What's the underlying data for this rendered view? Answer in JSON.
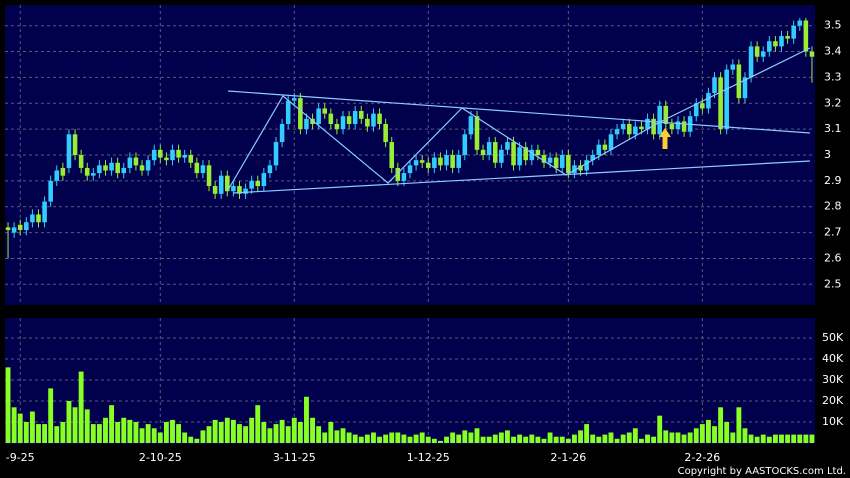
{
  "chart_data": {
    "type": "candlestick",
    "up_color": "#33ccff",
    "down_color": "#99ee33",
    "grid": true,
    "categories": [
      null,
      null,
      "-9-25",
      null,
      null,
      null,
      null,
      null,
      null,
      null,
      null,
      null,
      null,
      null,
      null,
      null,
      null,
      null,
      null,
      null,
      null,
      null,
      null,
      null,
      null,
      "2-10-25",
      null,
      null,
      null,
      null,
      null,
      null,
      null,
      null,
      null,
      null,
      null,
      null,
      null,
      null,
      null,
      null,
      null,
      null,
      null,
      null,
      null,
      "3-11-25",
      null,
      null,
      null,
      null,
      null,
      null,
      null,
      null,
      null,
      null,
      null,
      null,
      null,
      null,
      null,
      null,
      null,
      null,
      null,
      null,
      null,
      "1-12-25",
      null,
      null,
      null,
      null,
      null,
      null,
      null,
      null,
      null,
      null,
      null,
      null,
      null,
      null,
      null,
      null,
      null,
      null,
      null,
      null,
      null,
      null,
      "2-1-26",
      null,
      null,
      null,
      null,
      null,
      null,
      null,
      null,
      null,
      null,
      null,
      null,
      null,
      null,
      null,
      null,
      null,
      null,
      null,
      null,
      null,
      "2-2-26",
      null,
      null,
      null,
      null,
      null,
      null,
      null,
      null,
      null,
      null,
      null,
      null,
      null,
      null,
      null,
      null,
      null,
      null
    ],
    "open": [
      2.72,
      2.7,
      2.73,
      2.71,
      2.74,
      2.77,
      2.74,
      2.82,
      2.9,
      2.95,
      2.95,
      3.08,
      3.0,
      2.95,
      2.92,
      2.93,
      2.96,
      2.94,
      2.97,
      2.93,
      2.95,
      2.99,
      2.96,
      2.94,
      2.98,
      3.02,
      2.99,
      2.98,
      3.02,
      2.99,
      3.0,
      2.97,
      2.93,
      2.96,
      2.88,
      2.85,
      2.92,
      2.86,
      2.88,
      2.85,
      2.87,
      2.9,
      2.88,
      2.93,
      2.96,
      3.05,
      3.12,
      3.21,
      3.22,
      3.1,
      3.14,
      3.12,
      3.18,
      3.16,
      3.12,
      3.1,
      3.15,
      3.12,
      3.17,
      3.14,
      3.11,
      3.16,
      3.12,
      3.05,
      2.95,
      2.9,
      2.93,
      2.96,
      2.98,
      2.97,
      2.95,
      2.99,
      2.96,
      3.0,
      2.95,
      3.0,
      3.08,
      3.15,
      3.02,
      3.0,
      3.05,
      2.97,
      3.02,
      3.05,
      2.96,
      3.03,
      2.98,
      3.02,
      3.0,
      2.97,
      2.99,
      2.95,
      3.0,
      2.93,
      2.96,
      2.94,
      2.98,
      3.0,
      3.04,
      3.02,
      3.08,
      3.1,
      3.12,
      3.08,
      3.11,
      3.1,
      3.14,
      3.08,
      3.19,
      3.12,
      3.1,
      3.13,
      3.09,
      3.15,
      3.2,
      3.18,
      3.24,
      3.3,
      3.1,
      3.33,
      3.35,
      3.22,
      3.3,
      3.42,
      3.38,
      3.4,
      3.44,
      3.42,
      3.46,
      3.45,
      3.5,
      3.52,
      3.4
    ],
    "high": [
      2.74,
      2.74,
      2.75,
      2.76,
      2.79,
      2.79,
      2.84,
      2.92,
      2.96,
      2.97,
      3.1,
      3.1,
      3.02,
      2.97,
      2.95,
      2.98,
      2.98,
      2.99,
      2.99,
      2.97,
      3.01,
      3.01,
      2.98,
      3.0,
      3.04,
      3.04,
      3.01,
      3.04,
      3.04,
      3.02,
      3.02,
      2.99,
      2.98,
      2.98,
      2.9,
      2.94,
      2.94,
      2.9,
      2.9,
      2.89,
      2.92,
      2.92,
      2.95,
      2.98,
      3.07,
      3.14,
      3.23,
      3.24,
      3.24,
      3.16,
      3.16,
      3.2,
      3.2,
      3.18,
      3.14,
      3.17,
      3.17,
      3.19,
      3.19,
      3.16,
      3.18,
      3.18,
      3.14,
      3.07,
      2.97,
      2.95,
      2.98,
      3.0,
      3.0,
      2.99,
      3.01,
      3.01,
      3.02,
      3.02,
      3.02,
      3.1,
      3.17,
      3.17,
      3.04,
      3.07,
      3.07,
      3.04,
      3.07,
      3.07,
      3.05,
      3.05,
      3.04,
      3.04,
      3.02,
      3.01,
      3.01,
      3.02,
      3.02,
      2.98,
      2.98,
      3.0,
      3.02,
      3.06,
      3.06,
      3.1,
      3.12,
      3.14,
      3.14,
      3.13,
      3.13,
      3.16,
      3.16,
      3.21,
      3.21,
      3.14,
      3.15,
      3.15,
      3.17,
      3.22,
      3.22,
      3.26,
      3.32,
      3.32,
      3.35,
      3.37,
      3.37,
      3.32,
      3.44,
      3.44,
      3.42,
      3.46,
      3.46,
      3.48,
      3.48,
      3.52,
      3.53,
      3.53,
      3.42
    ],
    "low": [
      2.6,
      2.68,
      2.69,
      2.69,
      2.72,
      2.72,
      2.72,
      2.8,
      2.88,
      2.9,
      2.93,
      2.98,
      2.93,
      2.9,
      2.9,
      2.91,
      2.92,
      2.92,
      2.91,
      2.91,
      2.93,
      2.94,
      2.92,
      2.92,
      2.96,
      2.97,
      2.96,
      2.96,
      2.97,
      2.97,
      2.95,
      2.91,
      2.91,
      2.86,
      2.83,
      2.83,
      2.84,
      2.84,
      2.83,
      2.83,
      2.85,
      2.86,
      2.86,
      2.91,
      2.94,
      3.03,
      3.1,
      3.19,
      3.08,
      3.08,
      3.1,
      3.1,
      3.14,
      3.1,
      3.08,
      3.08,
      3.1,
      3.1,
      3.12,
      3.09,
      3.09,
      3.1,
      3.03,
      2.93,
      2.88,
      2.88,
      2.91,
      2.94,
      2.95,
      2.93,
      2.93,
      2.94,
      2.94,
      2.93,
      2.93,
      2.98,
      3.06,
      3.0,
      2.98,
      2.98,
      2.95,
      2.95,
      3.0,
      2.94,
      2.94,
      2.96,
      2.96,
      2.98,
      2.95,
      2.95,
      2.93,
      2.93,
      2.91,
      2.91,
      2.92,
      2.92,
      2.96,
      2.98,
      3.0,
      3.0,
      3.06,
      3.08,
      3.06,
      3.06,
      3.08,
      3.08,
      3.06,
      3.06,
      3.1,
      3.08,
      3.08,
      3.07,
      3.07,
      3.13,
      3.16,
      3.16,
      3.22,
      3.08,
      3.08,
      3.31,
      3.2,
      3.2,
      3.28,
      3.36,
      3.36,
      3.38,
      3.4,
      3.4,
      3.43,
      3.43,
      3.48,
      3.38,
      3.28
    ],
    "close": [
      2.71,
      2.72,
      2.71,
      2.74,
      2.77,
      2.74,
      2.82,
      2.9,
      2.94,
      2.92,
      3.08,
      3.0,
      2.95,
      2.92,
      2.93,
      2.96,
      2.94,
      2.97,
      2.93,
      2.95,
      2.99,
      2.96,
      2.94,
      2.98,
      3.02,
      2.99,
      2.98,
      3.02,
      2.99,
      3.0,
      2.97,
      2.93,
      2.96,
      2.88,
      2.85,
      2.92,
      2.86,
      2.88,
      2.85,
      2.87,
      2.9,
      2.88,
      2.93,
      2.96,
      3.05,
      3.12,
      3.21,
      3.22,
      3.1,
      3.14,
      3.12,
      3.18,
      3.16,
      3.12,
      3.1,
      3.15,
      3.12,
      3.17,
      3.14,
      3.11,
      3.16,
      3.12,
      3.05,
      2.95,
      2.9,
      2.93,
      2.96,
      2.98,
      2.97,
      2.95,
      2.99,
      2.96,
      3.0,
      2.95,
      3.0,
      3.08,
      3.15,
      3.02,
      3.0,
      3.05,
      2.97,
      3.02,
      3.05,
      2.96,
      3.03,
      2.98,
      3.02,
      3.0,
      2.97,
      2.99,
      2.95,
      3.0,
      2.93,
      2.96,
      2.94,
      2.98,
      3.0,
      3.04,
      3.02,
      3.08,
      3.1,
      3.12,
      3.08,
      3.11,
      3.1,
      3.14,
      3.08,
      3.19,
      3.12,
      3.1,
      3.13,
      3.09,
      3.15,
      3.2,
      3.18,
      3.24,
      3.3,
      3.1,
      3.33,
      3.35,
      3.22,
      3.3,
      3.42,
      3.38,
      3.4,
      3.44,
      3.42,
      3.46,
      3.45,
      3.5,
      3.52,
      3.4,
      3.38
    ],
    "ylim": [
      2.42,
      3.58
    ],
    "yticks": [
      2.5,
      2.6,
      2.7,
      2.8,
      2.9,
      3,
      3.1,
      3.2,
      3.3,
      3.4,
      3.5
    ],
    "volume": {
      "color": "#88ff22",
      "values": [
        36000,
        17000,
        14000,
        10000,
        15000,
        9000,
        9000,
        26000,
        8000,
        10000,
        20000,
        17000,
        34000,
        16000,
        9000,
        9000,
        12000,
        18000,
        10000,
        12000,
        11000,
        10000,
        7000,
        9000,
        7000,
        5000,
        10000,
        11000,
        9000,
        5000,
        3000,
        2000,
        6000,
        8000,
        11000,
        10000,
        12000,
        11000,
        9000,
        8000,
        12000,
        18000,
        10000,
        7000,
        9000,
        11000,
        8000,
        12000,
        10000,
        22000,
        12000,
        8000,
        5000,
        10000,
        6000,
        7000,
        5000,
        4000,
        3000,
        4000,
        5000,
        3000,
        4000,
        5000,
        5000,
        4000,
        3000,
        4000,
        5000,
        3000,
        2000,
        1000,
        3000,
        5000,
        4000,
        6000,
        5000,
        7000,
        3000,
        3000,
        4000,
        5000,
        6000,
        3000,
        4000,
        3000,
        4000,
        3000,
        2000,
        5000,
        3000,
        3000,
        2000,
        4000,
        6000,
        9000,
        4000,
        3000,
        4000,
        5000,
        2000,
        4000,
        5000,
        7000,
        2000,
        4000,
        3000,
        13000,
        6000,
        5000,
        5000,
        4000,
        5000,
        7000,
        9000,
        11000,
        8000,
        17000,
        10000,
        5000,
        17000,
        7000,
        4000,
        3000,
        4000,
        3000,
        4000,
        4000,
        4000,
        4000,
        4000,
        4000,
        4000
      ],
      "ylim": [
        0,
        59500
      ],
      "yticks": [
        {
          "value": 10000,
          "label": "10K"
        },
        {
          "value": 20000,
          "label": "20K"
        },
        {
          "value": 30000,
          "label": "30K"
        },
        {
          "value": 40000,
          "label": "40K"
        },
        {
          "value": 50000,
          "label": "50K"
        }
      ]
    },
    "copyright": "Copyright by AASTOCKS.com Ltd."
  }
}
